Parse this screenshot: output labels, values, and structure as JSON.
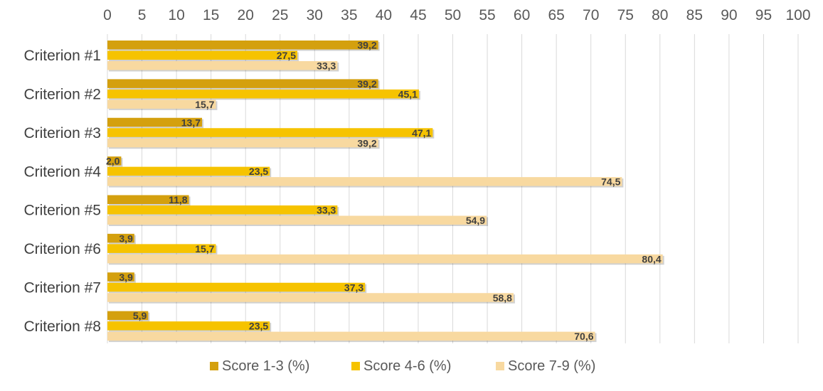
{
  "chart_data": {
    "type": "bar",
    "orientation": "horizontal",
    "title": "",
    "xlabel": "",
    "ylabel": "",
    "xlim": [
      0,
      100
    ],
    "x_ticks": [
      "0",
      "5",
      "10",
      "15",
      "20",
      "25",
      "30",
      "35",
      "40",
      "45",
      "50",
      "55",
      "60",
      "65",
      "70",
      "75",
      "80",
      "85",
      "90",
      "95",
      "100"
    ],
    "x_axis_position": "top",
    "grid": true,
    "legend_position": "bottom",
    "categories": [
      "Criterion #1",
      "Criterion #2",
      "Criterion #3",
      "Criterion #4",
      "Criterion #5",
      "Criterion #6",
      "Criterion #7",
      "Criterion #8"
    ],
    "series": [
      {
        "name": "Score 1-3 (%)",
        "color": "#D4A00E",
        "values": [
          39.2,
          39.2,
          13.7,
          2.0,
          11.8,
          3.9,
          3.9,
          5.9
        ],
        "labels": [
          "39,2",
          "39,2",
          "13,7",
          "2,0",
          "11,8",
          "3,9",
          "3,9",
          "5,9"
        ]
      },
      {
        "name": "Score 4-6 (%)",
        "color": "#F6C300",
        "values": [
          27.5,
          45.1,
          47.1,
          23.5,
          33.3,
          15.7,
          37.3,
          23.5
        ],
        "labels": [
          "27,5",
          "45,1",
          "47,1",
          "23,5",
          "33,3",
          "15,7",
          "37,3",
          "23,5"
        ]
      },
      {
        "name": "Score 7-9 (%)",
        "color": "#F8D9A0",
        "values": [
          33.3,
          15.7,
          39.2,
          74.5,
          54.9,
          80.4,
          58.8,
          70.6
        ],
        "labels": [
          "33,3",
          "15,7",
          "39,2",
          "74,5",
          "54,9",
          "80,4",
          "58,8",
          "70,6"
        ]
      }
    ]
  }
}
